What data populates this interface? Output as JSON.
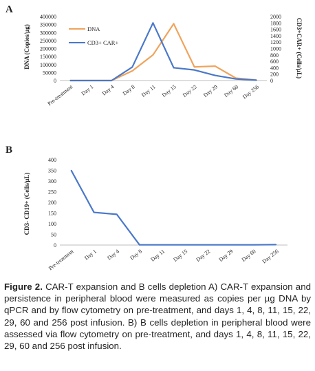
{
  "chart_data": [
    {
      "panel_label": "A",
      "type": "line",
      "categories": [
        "Pre-treatment",
        "Day 1",
        "Day 4",
        "Day 8",
        "Day 11",
        "Day 15",
        "Day 22",
        "Day 29",
        "Day 60",
        "Day 256"
      ],
      "y_left": {
        "label": "DNA (Copies/µg)",
        "range": [
          0,
          400000
        ],
        "ticks": [
          "0",
          "50000",
          "100000",
          "150000",
          "200000",
          "250000",
          "300000",
          "350000",
          "400000"
        ]
      },
      "y_right": {
        "label": "CD3+CAR+ (Cells/µL)",
        "range": [
          0,
          2000
        ],
        "ticks": [
          "0",
          "200",
          "400",
          "600",
          "800",
          "1000",
          "1200",
          "1400",
          "1600",
          "1800",
          "2000"
        ]
      },
      "series": [
        {
          "name": "DNA",
          "axis": "left",
          "color": "#f0a35b",
          "values": [
            0,
            0,
            0,
            60000,
            160000,
            355000,
            85000,
            90000,
            15000,
            3000
          ]
        },
        {
          "name": "CD3+ CAR+",
          "axis": "right",
          "color": "#4a78c9",
          "values": [
            0,
            0,
            0,
            420,
            1800,
            400,
            330,
            160,
            50,
            10
          ]
        }
      ],
      "legend_position": "top-left",
      "grid": false
    },
    {
      "panel_label": "B",
      "type": "line",
      "categories": [
        "Pre-treatment",
        "Day 1",
        "Day 4",
        "Day 8",
        "Day 11",
        "Day 15",
        "Day 22",
        "Day 29",
        "Day 60",
        "Day 256"
      ],
      "y": {
        "label": "CD3- CD19+ (Cells/µL)",
        "range": [
          0,
          400
        ],
        "ticks": [
          "0",
          "50",
          "100",
          "150",
          "200",
          "250",
          "300",
          "350",
          "400"
        ]
      },
      "series": [
        {
          "color": "#4a78c9",
          "values": [
            350,
            153,
            144,
            1,
            1,
            1,
            1,
            1,
            1,
            2
          ]
        }
      ],
      "grid": false
    }
  ],
  "caption": {
    "label": "Figure 2.",
    "text": "CAR-T expansion and B cells depletion A) CAR-T expansion and persistence in peripheral blood were measured as copies per µg DNA by qPCR and by flow cytometry on pre-treatment, and days 1, 4, 8, 11, 15, 22, 29, 60 and 256 post infusion. B) B cells depletion in peripheral blood were assessed via flow cytometry on pre-treatment, and days 1, 4, 8, 11, 15, 22, 29, 60 and 256 post infusion."
  }
}
